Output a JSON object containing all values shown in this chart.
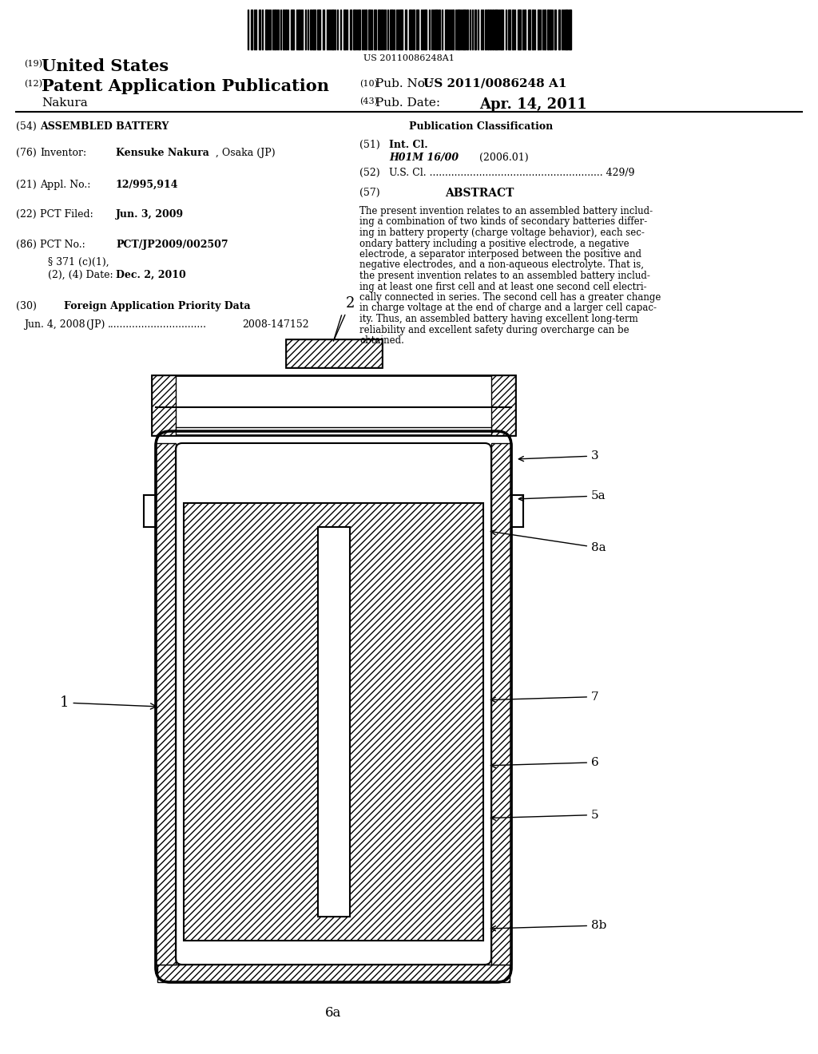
{
  "barcode_text": "US 20110086248A1",
  "patent_number_label": "(19)",
  "patent_number_text": "United States",
  "pub_label": "(12)",
  "pub_text": "Patent Application Publication",
  "pub_num_label": "(10)",
  "pub_num_text": "Pub. No.: US 2011/0086248 A1",
  "inventor_label": "(43)",
  "pub_date_label": "Pub. Date:",
  "pub_date_text": "Apr. 14, 2011",
  "name_text": "Nakura",
  "title_label": "(54)",
  "title_text": "ASSEMBLED BATTERY",
  "pub_class_header": "Publication Classification",
  "int_cl_label": "(51)",
  "int_cl_text": "Int. Cl.",
  "int_cl_class": "H01M 16/00",
  "int_cl_date": "(2006.01)",
  "us_cl_label": "(52)",
  "us_cl_text": "U.S. Cl. ........................................................ 429/9",
  "abstract_label": "(57)",
  "abstract_header": "ABSTRACT",
  "abstract_text": "The present invention relates to an assembled battery including a combination of two kinds of secondary batteries differing in battery property (charge voltage behavior), each secondary battery including a positive electrode, a negative electrode, a separator interposed between the positive and negative electrodes, and a non-aqueous electrolyte. That is, the present invention relates to an assembled battery including at least one first cell and at least one second cell electrically connected in series. The second cell has a greater change in charge voltage at the end of charge and a larger cell capacity. Thus, an assembled battery having excellent long-term reliability and excellent safety during overcharge can be obtained.",
  "inventor_label2": "(76)",
  "inventor_text": "Inventor:",
  "inventor_name": "Kensuke Nakura",
  "inventor_location": ", Osaka (JP)",
  "appl_label": "(21)",
  "appl_text": "Appl. No.:",
  "appl_num": "12/995,914",
  "pct_filed_label": "(22)",
  "pct_filed_text": "PCT Filed:",
  "pct_filed_date": "Jun. 3, 2009",
  "pct_no_label": "(86)",
  "pct_no_text": "PCT No.:",
  "pct_no_num": "PCT/JP2009/002507",
  "section_text": "§ 371 (c)(1),",
  "section_text2": "(2), (4) Date:",
  "section_date": "Dec. 2, 2010",
  "foreign_label": "(30)",
  "foreign_text": "Foreign Application Priority Data",
  "foreign_date": "Jun. 4, 2008",
  "foreign_country": "(JP)",
  "foreign_dots": "................................",
  "foreign_num": "2008-147152",
  "bg_color": "#ffffff",
  "text_color": "#000000"
}
